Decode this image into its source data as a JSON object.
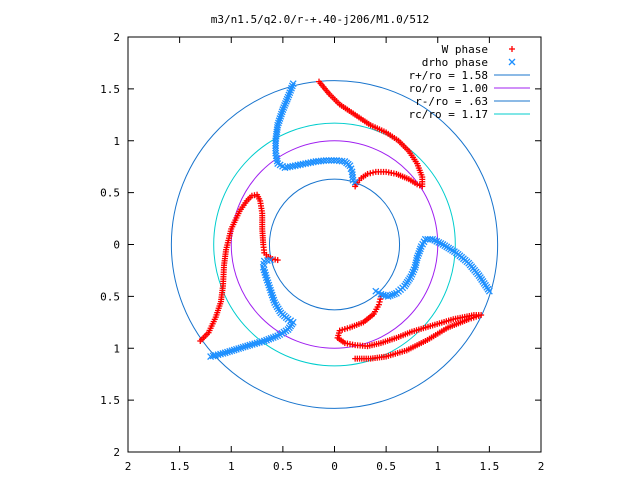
{
  "chart_data": {
    "type": "scatter",
    "title": "m3/n1.5/q2.0/r-+.40-j206/M1.0/512",
    "xlim": [
      -2,
      2
    ],
    "ylim": [
      -2,
      2
    ],
    "xticks": [
      -2,
      -1.5,
      -1,
      -0.5,
      0,
      0.5,
      1,
      1.5,
      2
    ],
    "yticks": [
      -2,
      -1.5,
      -1,
      -0.5,
      0,
      0.5,
      1,
      1.5,
      2
    ],
    "xtick_labels": [
      "2",
      "1.5",
      "1",
      "0.5",
      "0",
      "0.5",
      "1",
      "1.5",
      "2"
    ],
    "ytick_labels": [
      "2",
      "1.5",
      "1",
      "0.5",
      "0",
      "0.5",
      "1",
      "1.5",
      "2"
    ],
    "grid": false,
    "legend_position": "top-right",
    "series": [
      {
        "name": "W phase",
        "marker": "+",
        "color": "#ff0000",
        "arms": [
          [
            [
              -0.15,
              1.57
            ],
            [
              -0.05,
              1.45
            ],
            [
              0.05,
              1.35
            ],
            [
              0.2,
              1.25
            ],
            [
              0.35,
              1.15
            ],
            [
              0.5,
              1.08
            ],
            [
              0.62,
              1.0
            ],
            [
              0.72,
              0.9
            ],
            [
              0.8,
              0.78
            ],
            [
              0.85,
              0.65
            ],
            [
              0.85,
              0.56
            ],
            [
              0.8,
              0.58
            ],
            [
              0.72,
              0.63
            ],
            [
              0.6,
              0.68
            ],
            [
              0.5,
              0.7
            ],
            [
              0.4,
              0.7
            ],
            [
              0.32,
              0.68
            ],
            [
              0.26,
              0.64
            ],
            [
              0.22,
              0.6
            ],
            [
              0.2,
              0.56
            ]
          ],
          [
            [
              -1.3,
              -0.93
            ],
            [
              -1.22,
              -0.85
            ],
            [
              -1.15,
              -0.7
            ],
            [
              -1.1,
              -0.55
            ],
            [
              -1.08,
              -0.4
            ],
            [
              -1.07,
              -0.2
            ],
            [
              -1.05,
              -0.05
            ],
            [
              -1.0,
              0.15
            ],
            [
              -0.92,
              0.32
            ],
            [
              -0.85,
              0.42
            ],
            [
              -0.8,
              0.47
            ],
            [
              -0.75,
              0.48
            ],
            [
              -0.72,
              0.42
            ],
            [
              -0.7,
              0.3
            ],
            [
              -0.7,
              0.15
            ],
            [
              -0.69,
              0.0
            ],
            [
              -0.68,
              -0.08
            ],
            [
              -0.64,
              -0.12
            ],
            [
              -0.6,
              -0.14
            ],
            [
              -0.55,
              -0.15
            ]
          ],
          [
            [
              0.2,
              -1.1
            ],
            [
              0.35,
              -1.1
            ],
            [
              0.5,
              -1.08
            ],
            [
              0.7,
              -1.02
            ],
            [
              0.9,
              -0.92
            ],
            [
              1.1,
              -0.8
            ],
            [
              1.3,
              -0.72
            ],
            [
              1.42,
              -0.68
            ],
            [
              1.35,
              -0.68
            ],
            [
              1.15,
              -0.72
            ],
            [
              0.95,
              -0.78
            ],
            [
              0.75,
              -0.84
            ],
            [
              0.6,
              -0.9
            ],
            [
              0.45,
              -0.95
            ],
            [
              0.32,
              -0.98
            ],
            [
              0.2,
              -0.97
            ],
            [
              0.1,
              -0.95
            ],
            [
              0.03,
              -0.9
            ],
            [
              0.05,
              -0.83
            ],
            [
              0.15,
              -0.8
            ],
            [
              0.28,
              -0.75
            ],
            [
              0.38,
              -0.67
            ],
            [
              0.43,
              -0.58
            ],
            [
              0.45,
              -0.5
            ]
          ]
        ]
      },
      {
        "name": "drho phase",
        "marker": "x",
        "color": "#1e90ff",
        "arms": [
          [
            [
              -0.4,
              1.55
            ],
            [
              -0.45,
              1.42
            ],
            [
              -0.5,
              1.3
            ],
            [
              -0.55,
              1.15
            ],
            [
              -0.57,
              1.0
            ],
            [
              -0.57,
              0.88
            ],
            [
              -0.55,
              0.78
            ],
            [
              -0.48,
              0.74
            ],
            [
              -0.38,
              0.76
            ],
            [
              -0.28,
              0.78
            ],
            [
              -0.18,
              0.8
            ],
            [
              -0.08,
              0.81
            ],
            [
              0.02,
              0.81
            ],
            [
              0.1,
              0.8
            ],
            [
              0.15,
              0.76
            ],
            [
              0.17,
              0.7
            ],
            [
              0.18,
              0.62
            ],
            [
              0.2,
              0.6
            ]
          ],
          [
            [
              -1.2,
              -1.08
            ],
            [
              -1.08,
              -1.05
            ],
            [
              -0.95,
              -1.01
            ],
            [
              -0.82,
              -0.97
            ],
            [
              -0.68,
              -0.93
            ],
            [
              -0.55,
              -0.88
            ],
            [
              -0.45,
              -0.82
            ],
            [
              -0.4,
              -0.75
            ],
            [
              -0.45,
              -0.72
            ],
            [
              -0.52,
              -0.66
            ],
            [
              -0.58,
              -0.56
            ],
            [
              -0.62,
              -0.44
            ],
            [
              -0.66,
              -0.32
            ],
            [
              -0.69,
              -0.22
            ],
            [
              -0.68,
              -0.16
            ],
            [
              -0.62,
              -0.15
            ]
          ],
          [
            [
              1.5,
              -0.45
            ],
            [
              1.4,
              -0.3
            ],
            [
              1.3,
              -0.18
            ],
            [
              1.18,
              -0.08
            ],
            [
              1.05,
              0.0
            ],
            [
              0.95,
              0.05
            ],
            [
              0.88,
              0.05
            ],
            [
              0.84,
              -0.02
            ],
            [
              0.8,
              -0.13
            ],
            [
              0.78,
              -0.22
            ],
            [
              0.74,
              -0.31
            ],
            [
              0.68,
              -0.4
            ],
            [
              0.6,
              -0.47
            ],
            [
              0.52,
              -0.5
            ],
            [
              0.45,
              -0.48
            ],
            [
              0.4,
              -0.45
            ]
          ]
        ]
      }
    ],
    "circles": [
      {
        "name": "r+/ro = 1.58",
        "radius": 1.58,
        "color": "#1874cd"
      },
      {
        "name": "ro/ro = 1.00",
        "radius": 1.0,
        "color": "#a020f0"
      },
      {
        "name": "r-/ro = .63",
        "radius": 0.63,
        "color": "#1874cd"
      },
      {
        "name": "rc/ro = 1.17",
        "radius": 1.17,
        "color": "#00cdcd"
      }
    ]
  }
}
